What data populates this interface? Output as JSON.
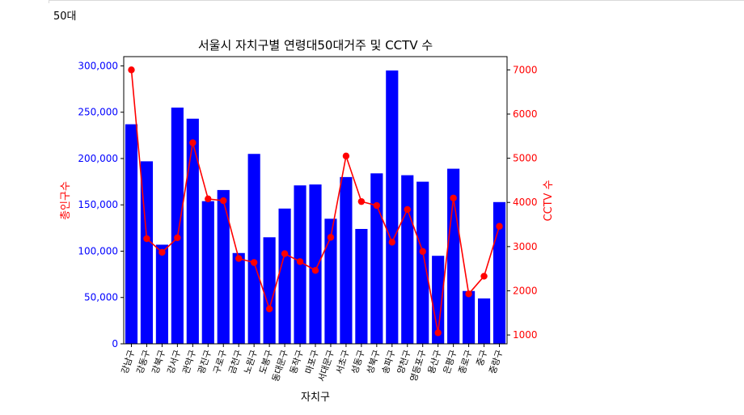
{
  "header": {
    "label": "50대"
  },
  "chart_data": {
    "type": "bar+line",
    "title": "서울시 자치구별 연령대50대거주 및 CCTV 수",
    "xlabel": "자치구",
    "ylabel_left": "총인구수",
    "ylabel_right": "CCTV 수",
    "categories": [
      "강남구",
      "강동구",
      "강북구",
      "강서구",
      "관악구",
      "광진구",
      "구로구",
      "금천구",
      "노원구",
      "도봉구",
      "동대문구",
      "동작구",
      "마포구",
      "서대문구",
      "서초구",
      "성동구",
      "성북구",
      "송파구",
      "양천구",
      "영등포구",
      "용산구",
      "은평구",
      "종로구",
      "중구",
      "중랑구"
    ],
    "y_left": {
      "lim": [
        0,
        310000
      ],
      "ticks": [
        0,
        50000,
        100000,
        150000,
        200000,
        250000,
        300000
      ],
      "tick_labels": [
        "0",
        "50,000",
        "100,000",
        "150,000",
        "200,000",
        "250,000",
        "300,000"
      ],
      "color": "#0000ff"
    },
    "y_right": {
      "lim": [
        800,
        7300
      ],
      "ticks": [
        1000,
        2000,
        3000,
        4000,
        5000,
        6000,
        7000
      ],
      "tick_labels": [
        "1000",
        "2000",
        "3000",
        "4000",
        "5000",
        "6000",
        "7000"
      ],
      "color": "#ff0000"
    },
    "series": [
      {
        "name": "총인구수",
        "kind": "bar",
        "axis": "left",
        "color": "#0000ff",
        "values": [
          237000,
          197000,
          107000,
          255000,
          243000,
          154000,
          166000,
          98000,
          205000,
          115000,
          146000,
          171000,
          172000,
          135000,
          180000,
          124000,
          184000,
          295000,
          182000,
          175000,
          95000,
          189000,
          57000,
          49000,
          153000
        ]
      },
      {
        "name": "CCTV 수",
        "kind": "line",
        "axis": "right",
        "color": "#ff0000",
        "values": [
          7000,
          3180,
          2870,
          3200,
          5350,
          4080,
          4040,
          2730,
          2640,
          1590,
          2840,
          2660,
          2460,
          3210,
          5050,
          4020,
          3930,
          3100,
          3840,
          2890,
          1050,
          4100,
          1930,
          2330,
          3460
        ]
      }
    ]
  }
}
